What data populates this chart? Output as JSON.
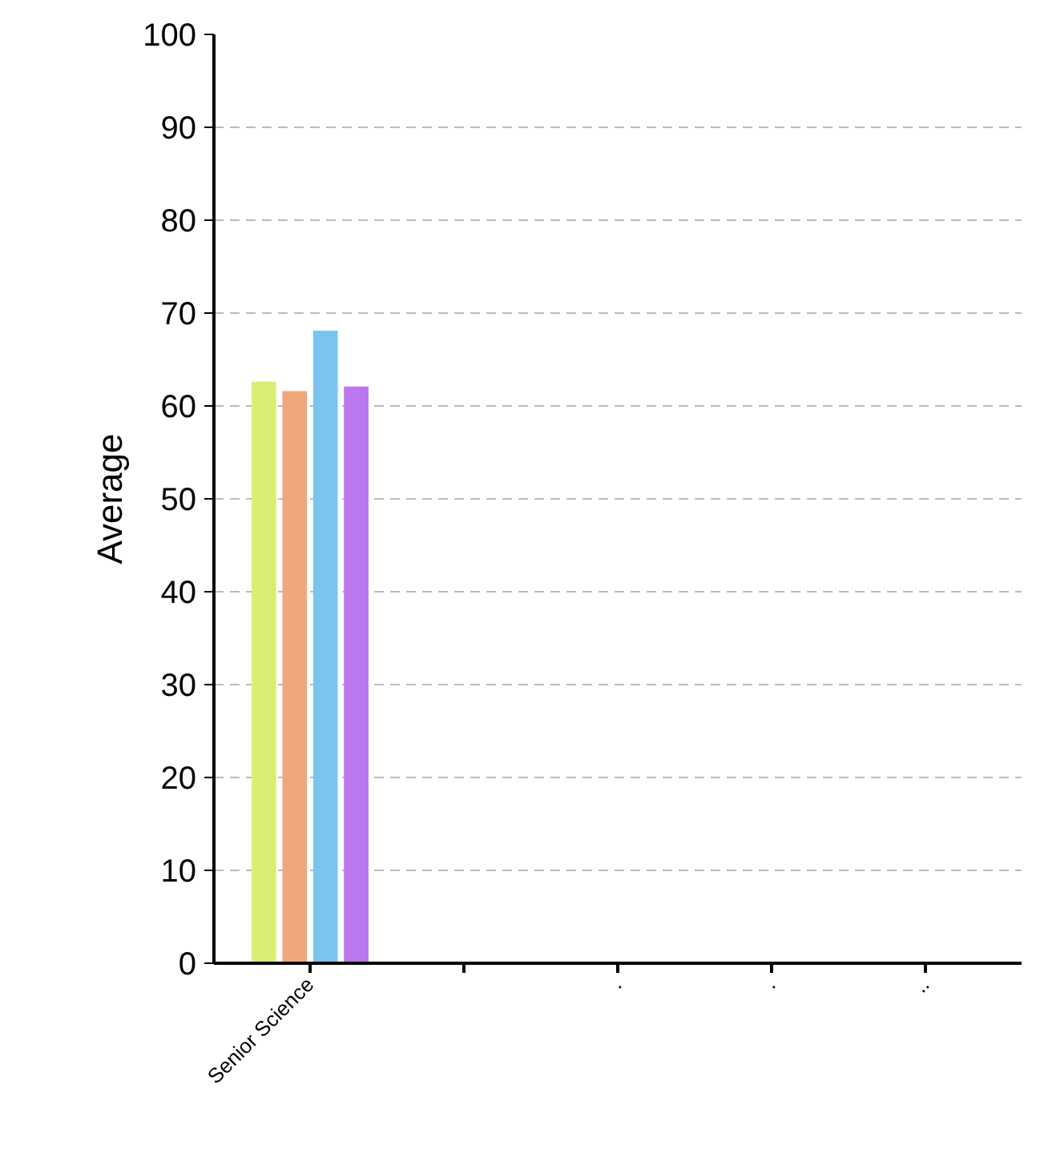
{
  "chart_data": {
    "type": "bar",
    "ylabel": "Average",
    "categories": [
      "Senior Science",
      null,
      ".",
      ".",
      ".."
    ],
    "series": [
      {
        "color": "#d9ef73",
        "values": [
          62.6,
          null,
          null,
          null,
          null
        ]
      },
      {
        "color": "#f0a77b",
        "values": [
          61.6,
          null,
          null,
          null,
          null
        ]
      },
      {
        "color": "#79c5ef",
        "values": [
          68.1,
          null,
          null,
          null,
          null
        ]
      },
      {
        "color": "#bb77ee",
        "values": [
          62.1,
          null,
          null,
          null,
          null
        ]
      }
    ],
    "ylim": [
      0,
      100
    ],
    "yticks": [
      0,
      10,
      20,
      30,
      40,
      50,
      60,
      70,
      80,
      90,
      100
    ],
    "grid": "y"
  }
}
